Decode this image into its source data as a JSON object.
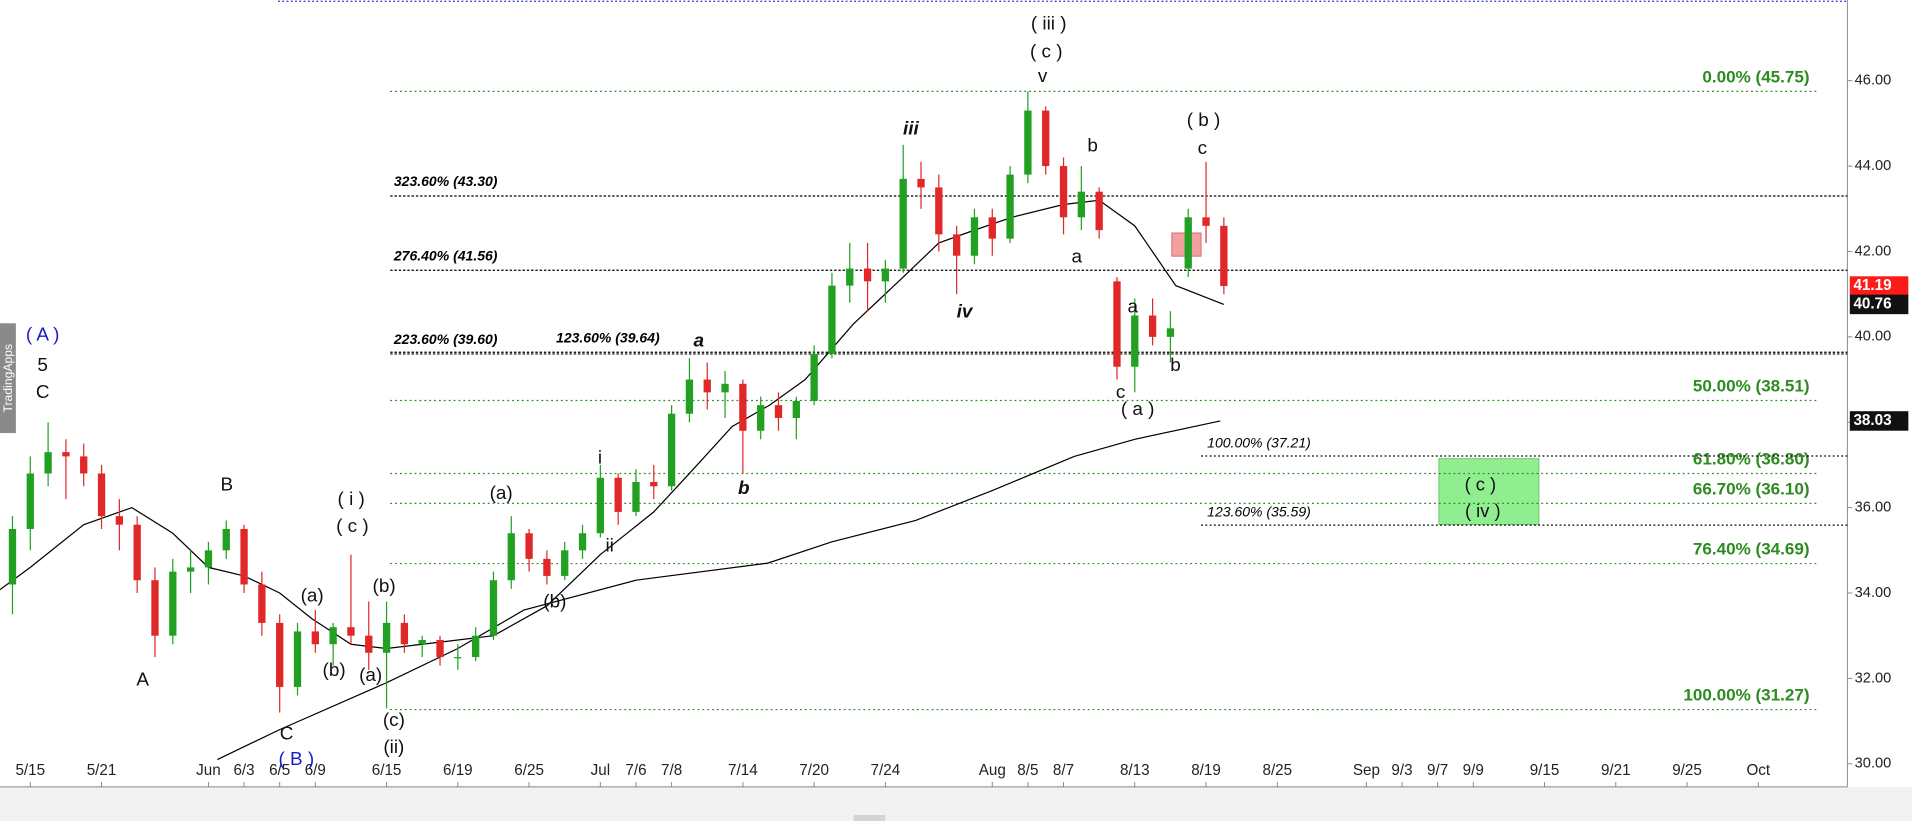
{
  "chart_data": {
    "type": "candlestick",
    "watermark": "TradingApps",
    "x": [
      -1,
      0,
      1,
      2,
      3,
      4,
      5,
      6,
      7,
      8,
      9,
      10,
      11,
      12,
      13,
      14,
      15,
      16,
      17,
      18,
      19,
      20,
      21,
      22,
      23,
      24,
      25,
      26,
      27,
      28,
      29,
      30,
      31,
      32,
      33,
      34,
      35,
      36,
      37,
      38,
      39,
      40,
      41,
      42,
      43,
      44,
      45,
      46,
      47,
      48,
      49,
      50,
      51,
      52,
      53,
      54,
      55,
      56,
      57,
      58,
      59,
      60,
      61,
      62,
      63,
      64,
      65,
      66,
      67
    ],
    "open": [
      34.2,
      35.5,
      36.8,
      37.3,
      37.2,
      36.8,
      35.8,
      35.6,
      34.3,
      33.0,
      34.5,
      34.6,
      35.0,
      35.5,
      34.2,
      33.3,
      31.8,
      33.1,
      32.8,
      33.2,
      33.0,
      32.6,
      33.3,
      32.8,
      32.9,
      32.5,
      32.5,
      33.0,
      34.3,
      35.4,
      34.8,
      34.4,
      35.0,
      35.4,
      36.7,
      35.9,
      36.6,
      36.5,
      38.2,
      39.0,
      38.7,
      38.9,
      37.8,
      38.4,
      38.1,
      38.5,
      39.6,
      41.2,
      41.6,
      41.3,
      41.6,
      43.7,
      43.5,
      42.4,
      41.9,
      42.8,
      42.3,
      43.8,
      45.3,
      44.0,
      42.8,
      43.4,
      41.3,
      39.3,
      40.5,
      40.0,
      41.6,
      42.8,
      42.6
    ],
    "high": [
      35.8,
      37.2,
      38.0,
      37.6,
      37.5,
      37.0,
      36.2,
      35.8,
      34.6,
      34.8,
      35.0,
      35.2,
      35.7,
      35.6,
      34.5,
      33.5,
      33.3,
      33.6,
      33.3,
      34.9,
      33.8,
      33.8,
      33.5,
      33.0,
      33.0,
      32.8,
      33.2,
      34.5,
      35.8,
      35.5,
      35.0,
      35.2,
      35.6,
      37.0,
      36.8,
      36.9,
      37.0,
      38.4,
      39.5,
      39.4,
      39.2,
      39.0,
      38.6,
      38.7,
      38.6,
      39.8,
      41.5,
      42.2,
      42.2,
      41.8,
      44.5,
      44.1,
      43.8,
      42.6,
      43.0,
      43.0,
      44.0,
      45.75,
      45.4,
      44.2,
      44.0,
      43.5,
      41.4,
      40.9,
      40.9,
      40.6,
      43.0,
      44.1,
      42.8
    ],
    "low": [
      33.5,
      35.0,
      36.5,
      36.2,
      36.5,
      35.5,
      35.0,
      34.0,
      32.5,
      32.8,
      34.0,
      34.2,
      34.8,
      34.0,
      33.0,
      31.2,
      31.6,
      32.6,
      32.3,
      32.8,
      32.2,
      31.3,
      32.6,
      32.5,
      32.3,
      32.2,
      32.4,
      32.9,
      34.1,
      34.5,
      34.2,
      34.3,
      34.8,
      35.3,
      35.6,
      35.8,
      36.2,
      36.4,
      38.0,
      38.3,
      38.1,
      36.8,
      37.6,
      37.8,
      37.6,
      38.4,
      39.5,
      40.8,
      40.6,
      40.8,
      41.5,
      43.0,
      42.0,
      41.0,
      41.7,
      41.9,
      42.2,
      43.6,
      43.8,
      42.4,
      42.5,
      42.3,
      39.0,
      38.7,
      39.8,
      39.4,
      41.4,
      42.2,
      41.0
    ],
    "close": [
      35.5,
      36.8,
      37.3,
      37.2,
      36.8,
      35.8,
      35.6,
      34.3,
      33.0,
      34.5,
      34.6,
      35.0,
      35.5,
      34.2,
      33.3,
      31.8,
      33.1,
      32.8,
      33.2,
      33.0,
      32.6,
      33.3,
      32.8,
      32.9,
      32.5,
      32.5,
      33.0,
      34.3,
      35.4,
      34.8,
      34.4,
      35.0,
      35.4,
      36.7,
      35.9,
      36.6,
      36.5,
      38.2,
      39.0,
      38.7,
      38.9,
      37.8,
      38.4,
      38.1,
      38.5,
      39.6,
      41.2,
      41.6,
      41.3,
      41.6,
      43.7,
      43.5,
      42.4,
      41.9,
      42.8,
      42.3,
      43.8,
      45.3,
      44.0,
      42.8,
      43.4,
      42.5,
      39.3,
      40.5,
      40.0,
      40.2,
      42.8,
      42.6,
      41.19
    ],
    "up_color": "#22a022",
    "down_color": "#e02828",
    "xlim": [
      -1.7,
      102
    ],
    "xticks": [
      {
        "value": 0,
        "label": "5/15"
      },
      {
        "value": 4,
        "label": "5/21"
      },
      {
        "value": 10,
        "label": "Jun"
      },
      {
        "value": 12,
        "label": "6/3"
      },
      {
        "value": 14,
        "label": "6/5"
      },
      {
        "value": 16,
        "label": "6/9"
      },
      {
        "value": 20,
        "label": "6/15"
      },
      {
        "value": 24,
        "label": "6/19"
      },
      {
        "value": 28,
        "label": "6/25"
      },
      {
        "value": 32,
        "label": "Jul"
      },
      {
        "value": 34,
        "label": "7/6"
      },
      {
        "value": 36,
        "label": "7/8"
      },
      {
        "value": 40,
        "label": "7/14"
      },
      {
        "value": 44,
        "label": "7/20"
      },
      {
        "value": 48,
        "label": "7/24"
      },
      {
        "value": 54,
        "label": "Aug"
      },
      {
        "value": 56,
        "label": "8/5"
      },
      {
        "value": 58,
        "label": "8/7"
      },
      {
        "value": 62,
        "label": "8/13"
      },
      {
        "value": 66,
        "label": "8/19"
      },
      {
        "value": 70,
        "label": "8/25"
      },
      {
        "value": 75,
        "label": "Sep"
      },
      {
        "value": 77,
        "label": "9/3"
      },
      {
        "value": 79,
        "label": "9/7"
      },
      {
        "value": 81,
        "label": "9/9"
      },
      {
        "value": 85,
        "label": "9/15"
      },
      {
        "value": 89,
        "label": "9/21"
      },
      {
        "value": 93,
        "label": "9/25"
      },
      {
        "value": 97,
        "label": "Oct"
      }
    ],
    "ylim": [
      29.46,
      47.89
    ],
    "yticks": [
      {
        "value": 30,
        "label": "30.00"
      },
      {
        "value": 32,
        "label": "32.00"
      },
      {
        "value": 34,
        "label": "34.00"
      },
      {
        "value": 36,
        "label": "36.00"
      },
      {
        "value": 38,
        "label": "38.00"
      },
      {
        "value": 40,
        "label": "40.00"
      },
      {
        "value": 42,
        "label": "42.00"
      },
      {
        "value": 44,
        "label": "44.00"
      },
      {
        "value": 46,
        "label": "46.00"
      }
    ],
    "moving_averages": [
      {
        "color": "#000000",
        "x": [
          -1.7,
          0,
          3,
          5.7,
          8,
          10,
          12,
          14,
          15.8,
          18,
          20,
          22,
          24,
          26,
          29,
          32,
          35,
          37,
          39.4,
          41.5,
          43.5,
          46.2,
          49,
          51,
          53,
          55.1,
          58,
          60,
          62,
          64.3,
          67
        ],
        "values": [
          34.08,
          34.6,
          35.6,
          36.0,
          35.4,
          34.6,
          34.4,
          34.0,
          33.4,
          32.8,
          32.7,
          32.8,
          32.9,
          33.0,
          33.7,
          34.9,
          35.9,
          36.8,
          37.9,
          38.4,
          39.0,
          40.3,
          41.4,
          42.2,
          42.5,
          42.8,
          43.1,
          43.2,
          42.6,
          41.2,
          40.76
        ]
      },
      {
        "color": "#000000",
        "x": [
          10.5,
          14,
          20,
          24,
          27.7,
          34,
          41.4,
          45,
          49.7,
          54,
          58.6,
          62,
          66.8
        ],
        "values": [
          30.1,
          30.8,
          31.9,
          32.7,
          33.6,
          34.3,
          34.7,
          35.2,
          35.7,
          36.4,
          37.2,
          37.6,
          38.03
        ]
      }
    ],
    "retracements": {
      "color": "#2e8b22",
      "levels": [
        {
          "value": 45.75,
          "label": "0.00% (45.75)"
        },
        {
          "value": 38.51,
          "label": "50.00% (38.51)"
        },
        {
          "value": 36.8,
          "label": "61.80% (36.80)"
        },
        {
          "value": 36.1,
          "label": "66.70% (36.10)"
        },
        {
          "value": 34.69,
          "label": "76.40% (34.69)"
        },
        {
          "value": 31.27,
          "label": "100.00% (31.27)"
        }
      ]
    },
    "extensions": {
      "color": "#000000",
      "levels": [
        {
          "value": 43.3,
          "label": "323.60% (43.30)"
        },
        {
          "value": 41.56,
          "label": "276.40% (41.56)"
        },
        {
          "value": 39.6,
          "label": "223.60% (39.60)"
        },
        {
          "value": 39.64,
          "label": "123.60% (39.64)"
        }
      ]
    },
    "projections": {
      "color": "#000000",
      "levels": [
        {
          "value": 37.21,
          "label": "100.00% (37.21)"
        },
        {
          "value": 35.59,
          "label": "123.60% (35.59)"
        }
      ]
    },
    "top_line": {
      "value": 47.86,
      "color": "#2233cc"
    },
    "last_values": [
      {
        "value": 41.19,
        "color": "#ff1a1a"
      },
      {
        "value": 40.76,
        "color": "#111111"
      },
      {
        "value": 38.03,
        "color": "#111111"
      }
    ],
    "annotations": [
      "( A )",
      "5",
      "C",
      "A",
      "B",
      "C",
      "( B )",
      "(a)",
      "(b)",
      "( i )",
      "( c )",
      "(b)",
      "(a)",
      "(c)",
      "(ii)",
      "(a)",
      "(b)",
      "i",
      "ii",
      "a",
      "b",
      "iii",
      "iv",
      "( iii )",
      "( c )",
      "v",
      "b",
      "a",
      "( b )",
      "c",
      "a",
      "c",
      "( a )",
      "b"
    ],
    "target_labels": [
      "( c )",
      "( iv )"
    ]
  }
}
